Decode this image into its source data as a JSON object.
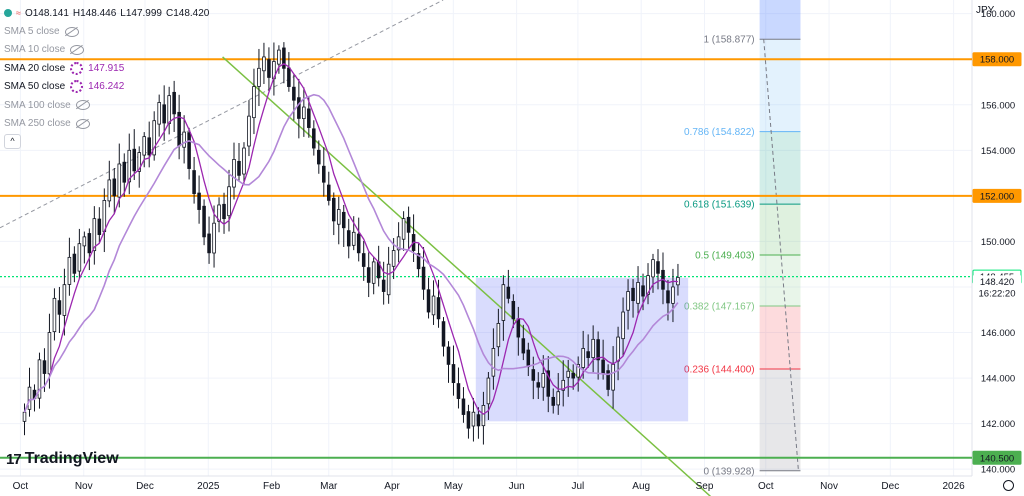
{
  "ohlc": {
    "open": "O148.141",
    "high": "H148.446",
    "low": "L147.999",
    "close": "C148.420"
  },
  "indicators": [
    {
      "label": "SMA 5 close",
      "value": "",
      "visible": false,
      "color": "#9598a1"
    },
    {
      "label": "SMA 10 close",
      "value": "",
      "visible": false,
      "color": "#9598a1"
    },
    {
      "label": "SMA 20 close",
      "value": "147.915",
      "visible": true,
      "color": "#9c27b0"
    },
    {
      "label": "SMA 50 close",
      "value": "146.242",
      "visible": true,
      "color": "#9c27b0"
    },
    {
      "label": "SMA 100 close",
      "value": "",
      "visible": false,
      "color": "#9598a1"
    },
    {
      "label": "SMA 250 close",
      "value": "",
      "visible": false,
      "color": "#9598a1"
    }
  ],
  "collapse_glyph": "^",
  "logo": {
    "mark": "17",
    "text": "TradingView"
  },
  "currency": "JPY",
  "chart_data": {
    "type": "candlestick",
    "x_labels": [
      "Oct",
      "Nov",
      "Dec",
      "2025",
      "Feb",
      "Mar",
      "Apr",
      "May",
      "Jun",
      "Jul",
      "Aug",
      "Sep",
      "Oct",
      "Nov",
      "Dec",
      "2026"
    ],
    "x_label_days": [
      0,
      31,
      61,
      92,
      123,
      151,
      182,
      212,
      243,
      273,
      304,
      335,
      365,
      396,
      426,
      457
    ],
    "y_ticks": [
      140,
      142,
      144,
      146,
      148,
      150,
      152,
      154,
      156,
      158,
      160
    ],
    "y_tick_labels": [
      "140.000",
      "142.000",
      "144.000",
      "146.000",
      "148.000",
      "150.000",
      "152.000",
      "154.000",
      "156.000",
      "158.000",
      "160.000"
    ],
    "ylim": [
      139.7,
      160.6
    ],
    "xlim_days": [
      -10,
      466
    ],
    "closes": [
      142.5,
      143.6,
      143.1,
      144.8,
      144.2,
      146.0,
      147.5,
      146.8,
      148.1,
      149.3,
      148.6,
      149.9,
      150.2,
      149.5,
      151.0,
      150.3,
      151.8,
      152.7,
      152.0,
      153.4,
      152.6,
      154.0,
      153.1,
      153.9,
      154.6,
      153.8,
      155.3,
      156.1,
      155.2,
      156.4,
      155.6,
      154.2,
      154.8,
      153.2,
      152.1,
      151.4,
      150.2,
      149.5,
      150.8,
      151.6,
      151.0,
      152.4,
      153.6,
      152.9,
      154.1,
      155.5,
      156.8,
      157.6,
      158.1,
      157.2,
      157.9,
      158.4,
      157.6,
      156.8,
      156.2,
      155.4,
      155.9,
      155.0,
      154.1,
      153.4,
      152.6,
      151.8,
      150.9,
      151.4,
      150.6,
      149.8,
      150.4,
      149.5,
      148.9,
      148.2,
      149.1,
      148.4,
      147.8,
      149.0,
      149.6,
      150.2,
      151.0,
      150.4,
      149.6,
      148.8,
      147.9,
      146.9,
      147.6,
      146.6,
      145.4,
      144.6,
      143.8,
      143.1,
      142.4,
      141.8,
      142.5,
      141.9,
      142.8,
      144.0,
      145.3,
      146.4,
      148.1,
      147.5,
      146.6,
      145.8,
      145.1,
      144.5,
      143.9,
      143.6,
      144.2,
      143.2,
      142.8,
      143.4,
      143.9,
      144.3,
      144.0,
      144.6,
      145.3,
      144.9,
      145.7,
      144.8,
      144.2,
      143.5,
      144.6,
      145.8,
      146.9,
      147.8,
      147.4,
      148.2,
      147.6,
      148.5,
      149.2,
      148.6,
      147.9,
      147.3,
      148.0,
      148.42
    ],
    "candle_start_day": 2,
    "sma20": [],
    "sma50": [],
    "horizontal_levels": [
      {
        "value": 158.0,
        "label": "158.000",
        "color": "#ff9800"
      },
      {
        "value": 152.0,
        "label": "152.000",
        "color": "#ff9800"
      },
      {
        "value": 140.5,
        "label": "140.500",
        "color": "#4caf50"
      },
      {
        "value": 148.455,
        "label": "148.455",
        "color": "#00e676"
      }
    ],
    "last_price": {
      "value": 148.42,
      "label": "148.420",
      "countdown": "16:22:20"
    },
    "fib_levels": [
      {
        "ratio": "1",
        "value": 158.877,
        "label": "1 (158.877)",
        "color": "#787b86"
      },
      {
        "ratio": "0.786",
        "value": 154.822,
        "label": "0.786 (154.822)",
        "color": "#64b5f6"
      },
      {
        "ratio": "0.618",
        "value": 151.639,
        "label": "0.618 (151.639)",
        "color": "#089981"
      },
      {
        "ratio": "0.5",
        "value": 149.403,
        "label": "0.5 (149.403)",
        "color": "#4caf50"
      },
      {
        "ratio": "0.382",
        "value": 147.167,
        "label": "0.382 (147.167)",
        "color": "#81c784"
      },
      {
        "ratio": "0.236",
        "value": 144.4,
        "label": "0.236 (144.400)",
        "color": "#f23645"
      },
      {
        "ratio": "0",
        "value": 139.928,
        "label": "0 (139.928)",
        "color": "#787b86"
      }
    ],
    "rectangle": {
      "x0_day": 223,
      "x1_day": 327,
      "y0": 142.1,
      "y1": 148.4,
      "color": "#3f51f5"
    },
    "trendline": {
      "x0_day": 99,
      "y0": 158.1,
      "x1_day": 338,
      "y1": 138.8,
      "color": "#7bc043"
    },
    "dashed_line": {
      "x0_day": -10,
      "y0": 150.6,
      "x1_day": 207,
      "y1": 160.6,
      "color": "#9598a1"
    },
    "colors": {
      "up": "#131722",
      "down": "#131722",
      "sma20": "#9c27b0",
      "sma50": "#9c27b0"
    }
  }
}
